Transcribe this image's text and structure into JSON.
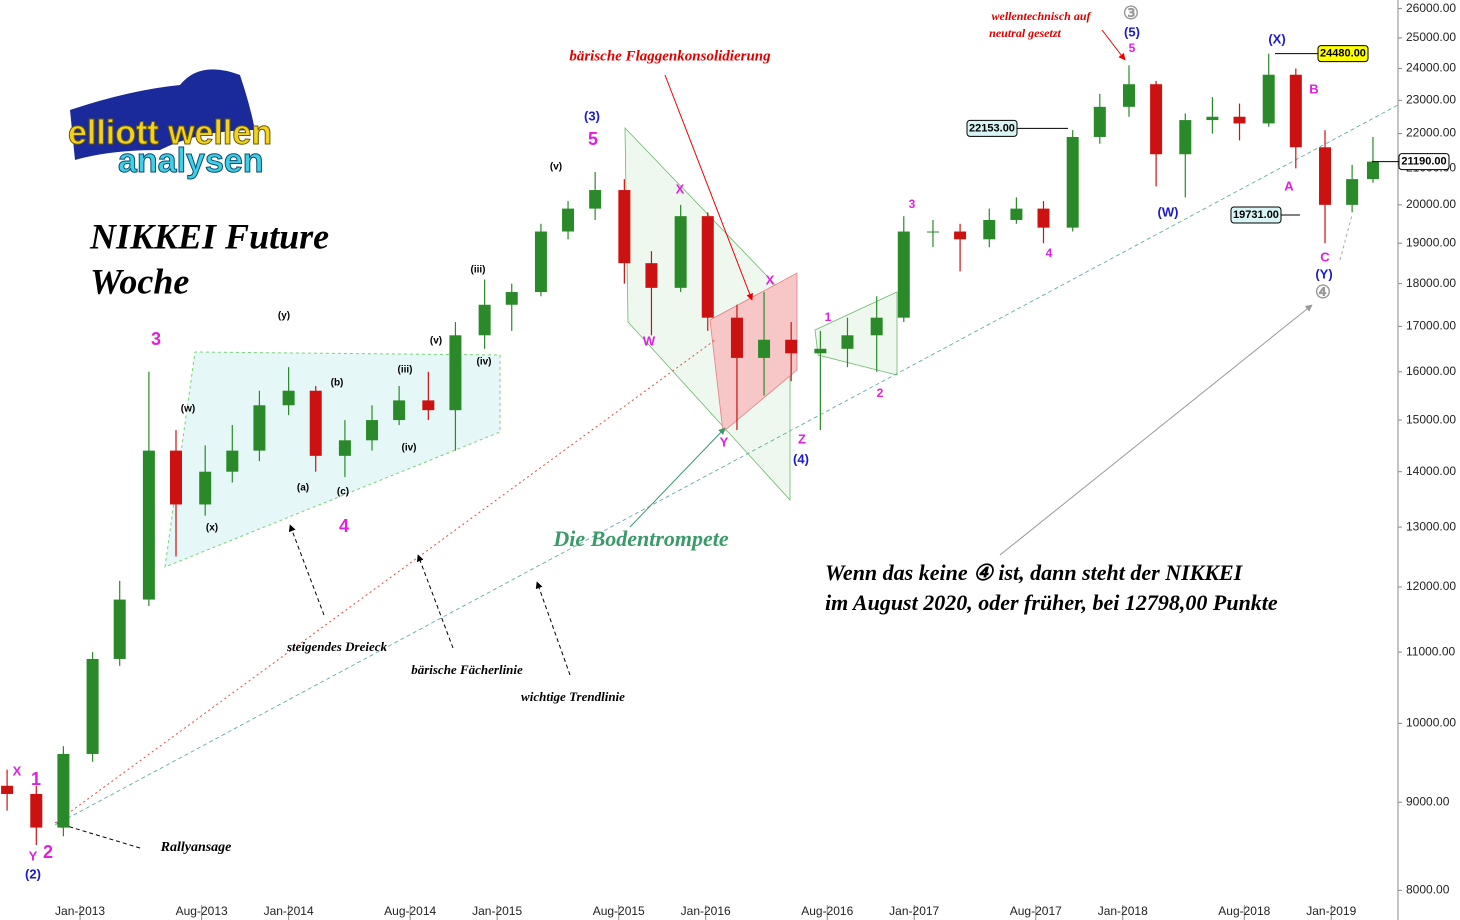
{
  "chart_data": {
    "type": "candlestick",
    "title": "NIKKEI Future",
    "subtitle": "Woche",
    "log_y": true,
    "grid": false,
    "up_color": "#2a8a2a",
    "down_color": "#cc1111",
    "x": [
      2012.65,
      2012.79,
      2012.92,
      2013.06,
      2013.19,
      2013.33,
      2013.46,
      2013.6,
      2013.73,
      2013.86,
      2014.0,
      2014.13,
      2014.27,
      2014.4,
      2014.53,
      2014.67,
      2014.8,
      2014.94,
      2015.07,
      2015.21,
      2015.34,
      2015.47,
      2015.61,
      2015.74,
      2015.88,
      2016.01,
      2016.15,
      2016.28,
      2016.41,
      2016.55,
      2016.68,
      2016.82,
      2016.95,
      2017.09,
      2017.22,
      2017.36,
      2017.49,
      2017.62,
      2017.76,
      2017.89,
      2018.03,
      2018.16,
      2018.3,
      2018.43,
      2018.56,
      2018.7,
      2018.83,
      2018.97,
      2019.1,
      2019.2
    ],
    "open": [
      9200,
      9100,
      8700,
      9600,
      10900,
      11800,
      14400,
      13400,
      14000,
      14400,
      15300,
      15600,
      14300,
      14600,
      15000,
      15400,
      15200,
      16800,
      17500,
      17800,
      19300,
      19900,
      20400,
      18500,
      17900,
      19700,
      17200,
      16300,
      16700,
      16400,
      16500,
      16800,
      17200,
      19300,
      19300,
      19100,
      19600,
      19900,
      19400,
      21900,
      22800,
      23500,
      21400,
      22400,
      22500,
      22300,
      23800,
      21600,
      20000,
      20700
    ],
    "high": [
      9400,
      9200,
      9700,
      11000,
      12100,
      16000,
      14800,
      14500,
      14900,
      15600,
      16100,
      15700,
      15000,
      15300,
      15700,
      16000,
      17100,
      18100,
      18000,
      19500,
      20100,
      20900,
      20700,
      18800,
      20000,
      19800,
      17500,
      17800,
      17100,
      16900,
      17200,
      17700,
      19700,
      19600,
      19500,
      19900,
      20200,
      20100,
      22100,
      23200,
      24100,
      23600,
      22600,
      23100,
      22900,
      24480,
      24000,
      22100,
      21100,
      21900
    ],
    "low": [
      8900,
      8500,
      8600,
      9500,
      10800,
      11700,
      12500,
      13200,
      13800,
      14200,
      15100,
      14000,
      13900,
      14400,
      14900,
      15000,
      14400,
      16500,
      16900,
      17700,
      19100,
      19600,
      18000,
      16800,
      17800,
      16900,
      14800,
      15500,
      15800,
      14800,
      16100,
      16000,
      17100,
      18900,
      18300,
      18900,
      19500,
      19000,
      19300,
      21700,
      22500,
      20500,
      20200,
      22000,
      21800,
      22200,
      21000,
      19000,
      19800,
      20600
    ],
    "close": [
      9100,
      8700,
      9600,
      10900,
      11800,
      14400,
      13400,
      14000,
      14400,
      15300,
      15600,
      14300,
      14600,
      15000,
      15400,
      15200,
      16800,
      17500,
      17800,
      19300,
      19900,
      20400,
      18500,
      17900,
      19700,
      17200,
      16300,
      16700,
      16400,
      16500,
      16800,
      17200,
      19300,
      19300,
      19100,
      19600,
      19900,
      19400,
      21900,
      22800,
      23500,
      21400,
      22400,
      22500,
      22300,
      23800,
      21600,
      20000,
      20700,
      21190
    ],
    "xlim": [
      2012.616,
      2019.32
    ],
    "xticks": [
      {
        "value": 2013.0,
        "label": "Jan-2013"
      },
      {
        "value": 2013.583,
        "label": "Aug-2013"
      },
      {
        "value": 2014.0,
        "label": "Jan-2014"
      },
      {
        "value": 2014.583,
        "label": "Aug-2014"
      },
      {
        "value": 2015.0,
        "label": "Jan-2015"
      },
      {
        "value": 2015.583,
        "label": "Aug-2015"
      },
      {
        "value": 2016.0,
        "label": "Jan-2016"
      },
      {
        "value": 2016.583,
        "label": "Aug-2016"
      },
      {
        "value": 2017.0,
        "label": "Jan-2017"
      },
      {
        "value": 2017.583,
        "label": "Aug-2017"
      },
      {
        "value": 2018.0,
        "label": "Jan-2018"
      },
      {
        "value": 2018.583,
        "label": "Aug-2018"
      },
      {
        "value": 2019.0,
        "label": "Jan-2019"
      }
    ],
    "ylim": [
      7720,
      26300
    ],
    "yticks": [
      {
        "value": 8000,
        "label": "8000.00"
      },
      {
        "value": 9000,
        "label": "9000.00"
      },
      {
        "value": 10000,
        "label": "10000.00"
      },
      {
        "value": 11000,
        "label": "11000.00"
      },
      {
        "value": 12000,
        "label": "12000.00"
      },
      {
        "value": 13000,
        "label": "13000.00"
      },
      {
        "value": 14000,
        "label": "14000.00"
      },
      {
        "value": 15000,
        "label": "15000.00"
      },
      {
        "value": 16000,
        "label": "16000.00"
      },
      {
        "value": 17000,
        "label": "17000.00"
      },
      {
        "value": 18000,
        "label": "18000.00"
      },
      {
        "value": 19000,
        "label": "19000.00"
      },
      {
        "value": 20000,
        "label": "20000.00"
      },
      {
        "value": 21000,
        "label": "21000.00"
      },
      {
        "value": 22000,
        "label": "22000.00"
      },
      {
        "value": 23000,
        "label": "23000.00"
      },
      {
        "value": 24000,
        "label": "24000.00"
      },
      {
        "value": 25000,
        "label": "25000.00"
      },
      {
        "value": 26000,
        "label": "26000.00"
      }
    ],
    "price_labels": [
      {
        "value": 22153,
        "label": "22153.00"
      },
      {
        "value": 19731,
        "label": "19731.00"
      },
      {
        "value": 24480,
        "label": "24480.00"
      },
      {
        "value": 21190,
        "label": "21190.00"
      }
    ],
    "wave_labels": [
      {
        "text": "X",
        "color": "#e020e0"
      },
      {
        "text": "1",
        "color": "#e020e0"
      },
      {
        "text": "Y",
        "color": "#e020e0"
      },
      {
        "text": "2",
        "color": "#e020e0"
      },
      {
        "text": "(2)",
        "color": "#1a1acc"
      },
      {
        "text": "3",
        "color": "#e020e0"
      },
      {
        "text": "4",
        "color": "#e020e0"
      },
      {
        "text": "(3)",
        "color": "#1a1acc"
      },
      {
        "text": "5",
        "color": "#e020e0"
      },
      {
        "text": "W",
        "color": "#e020e0"
      },
      {
        "text": "X",
        "color": "#e020e0"
      },
      {
        "text": "Y",
        "color": "#e020e0"
      },
      {
        "text": "X",
        "color": "#e020e0"
      },
      {
        "text": "Z",
        "color": "#e020e0"
      },
      {
        "text": "(4)",
        "color": "#1a1acc"
      },
      {
        "text": "1",
        "color": "#e020e0"
      },
      {
        "text": "2",
        "color": "#e020e0"
      },
      {
        "text": "3",
        "color": "#e020e0"
      },
      {
        "text": "4",
        "color": "#e020e0"
      },
      {
        "text": "5",
        "color": "#e020e0"
      },
      {
        "text": "(5)",
        "color": "#1a1acc"
      },
      {
        "text": "③",
        "color": "#999999"
      },
      {
        "text": "(W)",
        "color": "#1a1acc"
      },
      {
        "text": "(X)",
        "color": "#1a1acc"
      },
      {
        "text": "A",
        "color": "#e020e0"
      },
      {
        "text": "B",
        "color": "#e020e0"
      },
      {
        "text": "C",
        "color": "#e020e0"
      },
      {
        "text": "(Y)",
        "color": "#1a1acc"
      },
      {
        "text": "④",
        "color": "#999999"
      },
      {
        "text": "(w)",
        "color": "#000000"
      },
      {
        "text": "(x)",
        "color": "#000000"
      },
      {
        "text": "(y)",
        "color": "#000000"
      },
      {
        "text": "(a)",
        "color": "#000000"
      },
      {
        "text": "(b)",
        "color": "#000000"
      },
      {
        "text": "(c)",
        "color": "#000000"
      },
      {
        "text": "(iii)",
        "color": "#000000"
      },
      {
        "text": "(iv)",
        "color": "#000000"
      },
      {
        "text": "(v)",
        "color": "#000000"
      },
      {
        "text": "(iii)",
        "color": "#000000"
      },
      {
        "text": "(iv)",
        "color": "#000000"
      },
      {
        "text": "(v)",
        "color": "#000000"
      }
    ],
    "annotations": [
      {
        "text": "bärische Flaggenkonsolidierung"
      },
      {
        "text": "wellentechnisch auf"
      },
      {
        "text": "neutral gesetzt"
      },
      {
        "text": "Die Bodentrompete"
      },
      {
        "text": "steigendes Dreieck"
      },
      {
        "text": "bärische Fächerlinie"
      },
      {
        "text": "wichtige Trendlinie"
      },
      {
        "text": "Rallyansage"
      },
      {
        "text": "Wenn das keine ④ ist, dann steht der NIKKEI"
      },
      {
        "text": "im August 2020, oder früher, bei 12798,00 Punkte"
      }
    ],
    "logo": [
      "elliott wellen",
      "analysen"
    ]
  }
}
